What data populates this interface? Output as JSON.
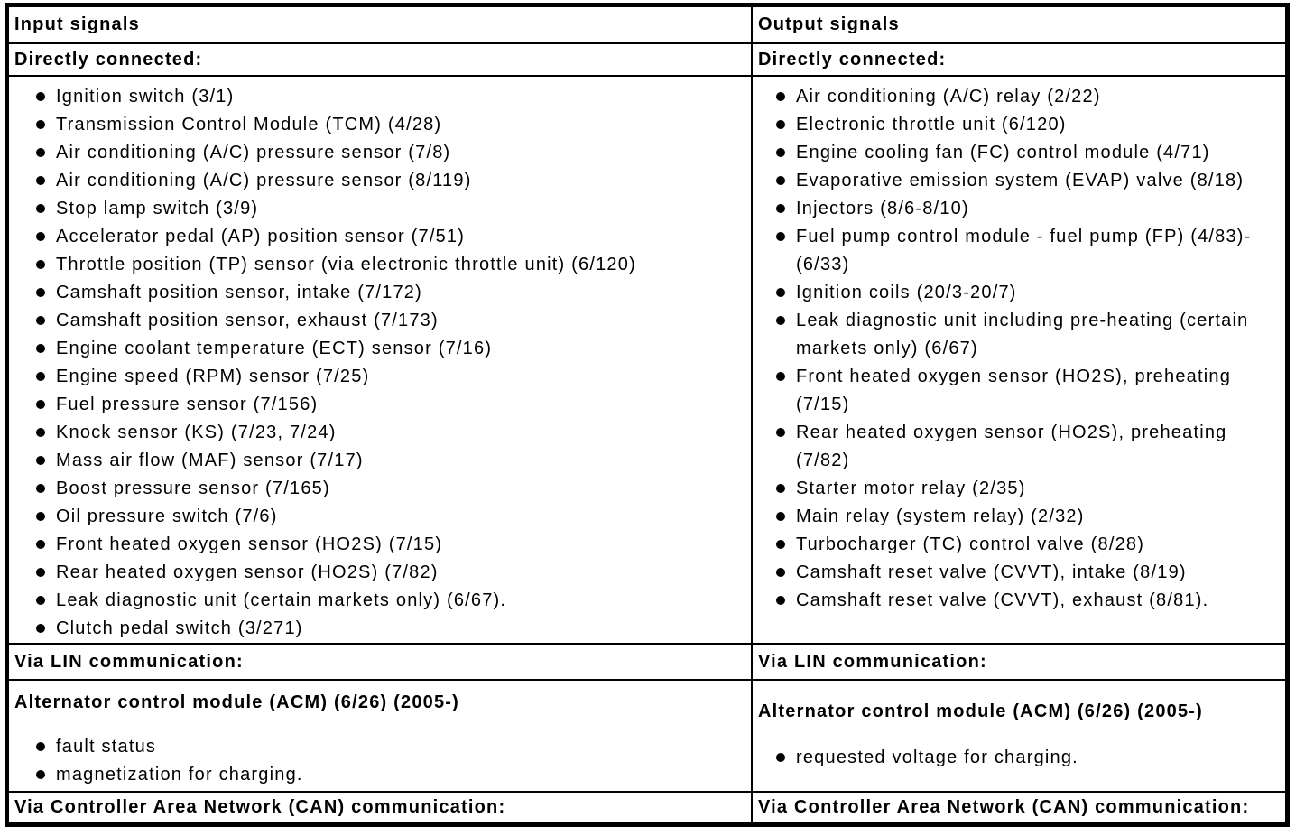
{
  "input_column": {
    "header": "Input signals",
    "directly_connected": {
      "label": "Directly connected:",
      "items": [
        "Ignition switch (3/1)",
        "Transmission Control Module (TCM) (4/28)",
        "Air conditioning (A/C) pressure sensor (7/8)",
        "Air conditioning (A/C) pressure sensor (8/119)",
        "Stop lamp switch (3/9)",
        "Accelerator pedal (AP) position sensor (7/51)",
        "Throttle position (TP) sensor (via electronic throttle unit) (6/120)",
        "Camshaft position sensor, intake (7/172)",
        "Camshaft position sensor, exhaust (7/173)",
        "Engine coolant temperature (ECT) sensor (7/16)",
        "Engine speed (RPM) sensor (7/25)",
        "Fuel pressure sensor (7/156)",
        "Knock sensor (KS) (7/23, 7/24)",
        "Mass air flow (MAF) sensor (7/17)",
        "Boost pressure sensor (7/165)",
        "Oil pressure switch (7/6)",
        "Front heated oxygen sensor (HO2S) (7/15)",
        "Rear heated oxygen sensor (HO2S) (7/82)",
        "Leak diagnostic unit (certain markets only) (6/67).",
        "Clutch pedal switch (3/271)"
      ]
    },
    "via_lin": {
      "label": "Via LIN communication:",
      "module_heading": "Alternator control module (ACM) (6/26) (2005-)",
      "items": [
        "fault status",
        "magnetization for charging."
      ]
    },
    "via_can": {
      "label": "Via Controller Area Network (CAN) communication:"
    }
  },
  "output_column": {
    "header": "Output signals",
    "directly_connected": {
      "label": "Directly connected:",
      "items": [
        "Air conditioning (A/C) relay (2/22)",
        "Electronic throttle unit (6/120)",
        "Engine cooling fan (FC) control module (4/71)",
        "Evaporative emission system (EVAP) valve (8/18)",
        "Injectors (8/6-8/10)",
        "Fuel pump control module - fuel pump (FP) (4/83)-(6/33)",
        "Ignition coils (20/3-20/7)",
        "Leak diagnostic unit including pre-heating (certain markets only) (6/67)",
        "Front heated oxygen sensor (HO2S), preheating (7/15)",
        "Rear heated oxygen sensor (HO2S), preheating (7/82)",
        "Starter motor relay (2/35)",
        "Main relay (system relay) (2/32)",
        "Turbocharger (TC) control valve (8/28)",
        "Camshaft reset valve (CVVT), intake (8/19)",
        "Camshaft reset valve (CVVT), exhaust (8/81)."
      ]
    },
    "via_lin": {
      "label": "Via LIN communication:",
      "module_heading": "Alternator control module (ACM) (6/26) (2005-)",
      "items": [
        "requested voltage for charging."
      ]
    },
    "via_can": {
      "label": "Via Controller Area Network (CAN) communication:"
    }
  },
  "colors": {
    "text": "#000000",
    "background": "#ffffff",
    "border": "#000000"
  }
}
